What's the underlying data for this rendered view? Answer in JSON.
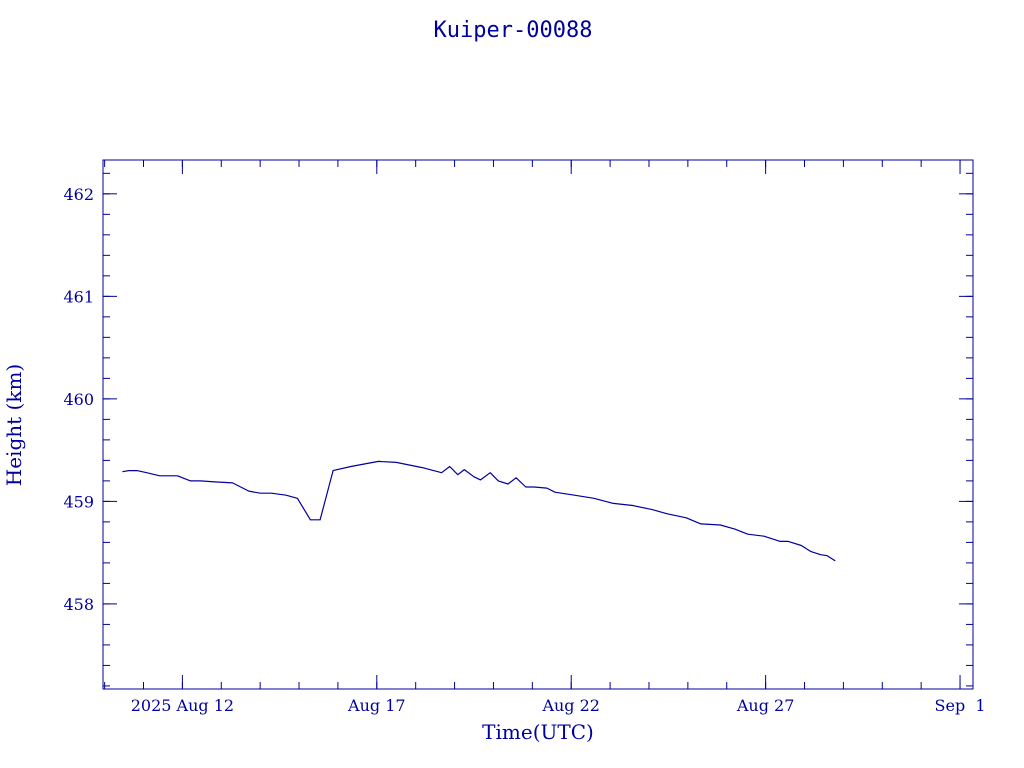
{
  "chart_data": {
    "type": "line",
    "title": "Kuiper-00088",
    "xlabel": "Time(UTC)",
    "ylabel": "Height (km)",
    "x_tick_labels": [
      "2025 Aug 12",
      "Aug 17",
      "Aug 22",
      "Aug 27",
      "Sep  1"
    ],
    "x_tick_dates": [
      "2025-08-12",
      "2025-08-17",
      "2025-08-22",
      "2025-08-27",
      "2025-09-01"
    ],
    "xlim": [
      "2025-08-09T23:00:00",
      "2025-09-01T08:00:00"
    ],
    "y_tick_labels": [
      "458",
      "459",
      "460",
      "461",
      "462"
    ],
    "ylim": [
      457.17,
      462.33
    ],
    "line_color": "#00009c",
    "grid": false,
    "series": [
      {
        "x": [
          "2025-08-10T11:00:00",
          "2025-08-10T15:00:00",
          "2025-08-10T20:00:00",
          "2025-08-11T02:00:00",
          "2025-08-11T10:00:00",
          "2025-08-11T21:00:00",
          "2025-08-12T05:00:00",
          "2025-08-12T11:00:00",
          "2025-08-12T20:00:00",
          "2025-08-13T07:00:00",
          "2025-08-13T17:00:00",
          "2025-08-14T00:00:00",
          "2025-08-14T07:00:00",
          "2025-08-14T16:00:00",
          "2025-08-14T23:00:00",
          "2025-08-15T07:00:00",
          "2025-08-15T13:00:00",
          "2025-08-15T21:00:00",
          "2025-08-16T08:00:00",
          "2025-08-17T01:00:00",
          "2025-08-17T12:00:00",
          "2025-08-18T04:00:00",
          "2025-08-18T16:00:00",
          "2025-08-18T21:00:00",
          "2025-08-19T02:00:00",
          "2025-08-19T06:00:00",
          "2025-08-19T12:00:00",
          "2025-08-19T16:00:00",
          "2025-08-19T22:00:00",
          "2025-08-20T03:00:00",
          "2025-08-20T09:00:00",
          "2025-08-20T14:00:00",
          "2025-08-20T20:00:00",
          "2025-08-21T01:00:00",
          "2025-08-21T09:00:00",
          "2025-08-21T14:00:00",
          "2025-08-22T02:00:00",
          "2025-08-22T14:00:00",
          "2025-08-23T02:00:00",
          "2025-08-23T14:00:00",
          "2025-08-24T02:00:00",
          "2025-08-24T11:00:00",
          "2025-08-24T23:00:00",
          "2025-08-25T08:00:00",
          "2025-08-25T20:00:00",
          "2025-08-26T05:00:00",
          "2025-08-26T13:00:00",
          "2025-08-26T23:00:00",
          "2025-08-27T09:00:00",
          "2025-08-27T14:00:00",
          "2025-08-27T22:00:00",
          "2025-08-28T04:00:00",
          "2025-08-28T10:00:00",
          "2025-08-28T14:00:00",
          "2025-08-28T19:00:00"
        ],
        "y": [
          459.29,
          459.3,
          459.3,
          459.28,
          459.25,
          459.25,
          459.2,
          459.2,
          459.19,
          459.18,
          459.1,
          459.08,
          459.08,
          459.06,
          459.03,
          458.82,
          458.82,
          459.3,
          459.34,
          459.39,
          459.38,
          459.33,
          459.28,
          459.34,
          459.26,
          459.31,
          459.24,
          459.21,
          459.28,
          459.2,
          459.17,
          459.23,
          459.14,
          459.14,
          459.13,
          459.09,
          459.06,
          459.03,
          458.98,
          458.96,
          458.92,
          458.88,
          458.84,
          458.78,
          458.77,
          458.73,
          458.68,
          458.66,
          458.61,
          458.61,
          458.57,
          458.51,
          458.48,
          458.47,
          458.42
        ]
      }
    ]
  }
}
